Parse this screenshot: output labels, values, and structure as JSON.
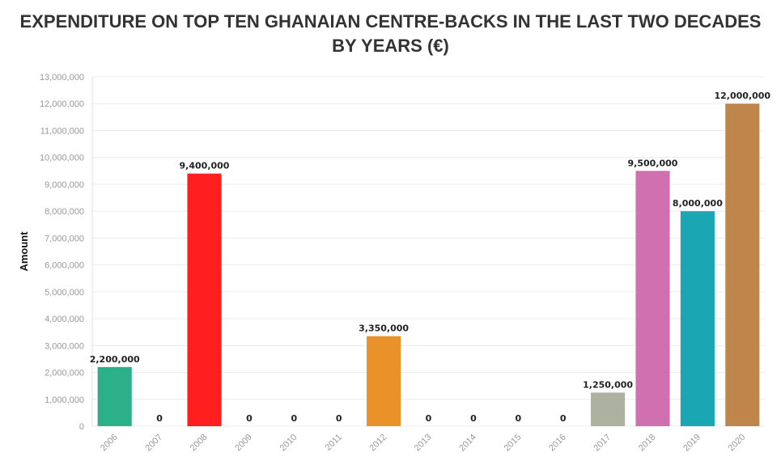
{
  "chart_data": {
    "type": "bar",
    "title_line1": "EXPENDITURE ON TOP TEN GHANAIAN CENTRE-BACKS IN THE LAST TWO DECADES",
    "title_line2": "BY YEARS (€)",
    "xlabel": "",
    "ylabel": "Amount",
    "ylim": [
      0,
      13000000
    ],
    "yticks": [
      0,
      1000000,
      2000000,
      3000000,
      4000000,
      5000000,
      6000000,
      7000000,
      8000000,
      9000000,
      10000000,
      11000000,
      12000000,
      13000000
    ],
    "ytick_labels": [
      "0",
      "1,000,000",
      "2,000,000",
      "3,000,000",
      "4,000,000",
      "5,000,000",
      "6,000,000",
      "7,000,000",
      "8,000,000",
      "9,000,000",
      "10,000,000",
      "11,000,000",
      "12,000,000",
      "13,000,000"
    ],
    "categories": [
      "2006",
      "2007",
      "2008",
      "2009",
      "2010",
      "2011",
      "2012",
      "2013",
      "2014",
      "2015",
      "2016",
      "2017",
      "2018",
      "2019",
      "2020"
    ],
    "values": [
      2200000,
      0,
      9400000,
      0,
      0,
      0,
      3350000,
      0,
      0,
      0,
      0,
      1250000,
      9500000,
      8000000,
      12000000
    ],
    "value_labels": [
      "2,200,000",
      "0",
      "9,400,000",
      "0",
      "0",
      "0",
      "3,350,000",
      "0",
      "0",
      "0",
      "0",
      "1,250,000",
      "9,500,000",
      "8,000,000",
      "12,000,000"
    ],
    "colors": [
      "#2bb087",
      "#2bb087",
      "#ff1f1f",
      "#ff1f1f",
      "#ff1f1f",
      "#ff1f1f",
      "#ea922a",
      "#ea922a",
      "#ea922a",
      "#ea922a",
      "#ea922a",
      "#adb1a0",
      "#d170b0",
      "#1aa6b3",
      "#bf854a"
    ],
    "grid": true,
    "legend": "none"
  }
}
